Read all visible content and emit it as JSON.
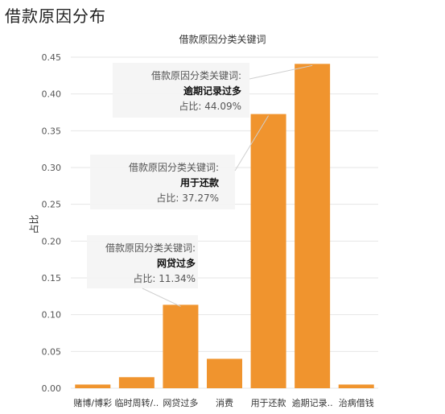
{
  "page": {
    "title": "借款原因分布"
  },
  "chart_data": {
    "type": "bar",
    "title": "借款原因分类关键词",
    "xlabel": "",
    "ylabel": "占比",
    "ylim": [
      0,
      0.45
    ],
    "yticks": [
      "0.00",
      "0.05",
      "0.10",
      "0.15",
      "0.20",
      "0.25",
      "0.30",
      "0.35",
      "0.40",
      "0.45"
    ],
    "categories": [
      "赌博/博彩",
      "临时周转/..",
      "网贷过多",
      "消费",
      "用于还款",
      "逾期记录..",
      "治病借钱"
    ],
    "values": [
      0.005,
      0.015,
      0.1134,
      0.04,
      0.3727,
      0.4409,
      0.005
    ],
    "bar_color": "#f0942e",
    "annotations": [
      {
        "category_index": 5,
        "label": "借款原因分类关键词:",
        "value_name": "逾期记录过多",
        "value_text": "占比: 44.09%"
      },
      {
        "category_index": 4,
        "label": "借款原因分类关键词:",
        "value_name": "用于还款",
        "value_text": "占比: 37.27%"
      },
      {
        "category_index": 2,
        "label": "借款原因分类关键词:",
        "value_name": "网贷过多",
        "value_text": "占比: 11.34%"
      }
    ]
  }
}
